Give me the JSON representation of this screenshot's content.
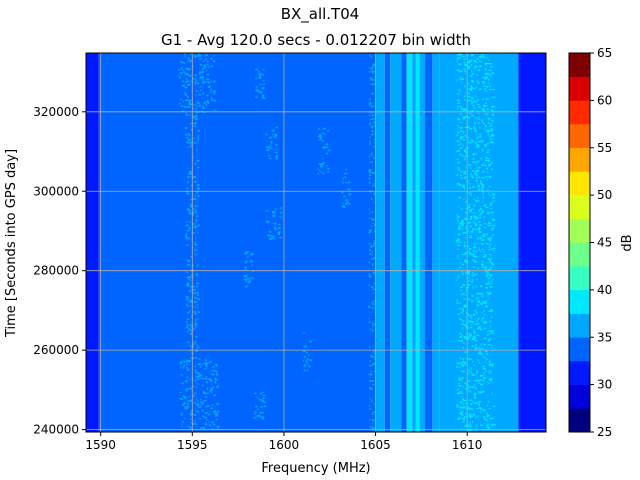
{
  "chart_data": {
    "type": "heatmap",
    "title": "BX_all.T04",
    "subtitle": "G1 - Avg 120.0 secs - 0.012207 bin width",
    "xlabel": "Frequency (MHz)",
    "ylabel": "Time [Seconds into GPS day]",
    "xlim": [
      1589.2,
      1614.3
    ],
    "ylim": [
      239400,
      334800
    ],
    "xticks": [
      1590,
      1595,
      1600,
      1605,
      1610
    ],
    "xtick_labels": [
      "1590",
      "1595",
      "1600",
      "1605",
      "1610"
    ],
    "yticks": [
      240000,
      260000,
      280000,
      300000,
      320000
    ],
    "ytick_labels": [
      "240000",
      "260000",
      "280000",
      "300000",
      "320000"
    ],
    "grid": true,
    "colorbar": {
      "label": "dB",
      "levels": [
        25,
        27.5,
        30,
        32.5,
        35,
        37.5,
        40,
        42.5,
        45,
        47.5,
        50,
        52.5,
        55,
        57.5,
        60,
        62.5,
        65
      ],
      "colors": [
        "#00007f",
        "#0000db",
        "#0019ff",
        "#0065ff",
        "#00a8ff",
        "#00e8ff",
        "#36ffc1",
        "#6cff8a",
        "#a1ff56",
        "#dbff1c",
        "#ffe600",
        "#ffa700",
        "#ff6800",
        "#ff2a00",
        "#db0000",
        "#7f0000"
      ],
      "ticks": [
        25,
        30,
        35,
        40,
        45,
        50,
        55,
        60,
        65
      ],
      "tick_labels": [
        "25",
        "30",
        "35",
        "40",
        "45",
        "50",
        "55",
        "60",
        "65"
      ]
    },
    "bands": [
      {
        "x0": 1589.2,
        "x1": 1589.9,
        "level_db": 30
      },
      {
        "x0": 1589.9,
        "x1": 1605.0,
        "level_db": 32.5
      },
      {
        "x0": 1605.0,
        "x1": 1605.5,
        "level_db": 35
      },
      {
        "x0": 1605.5,
        "x1": 1605.8,
        "level_db": 32.5
      },
      {
        "x0": 1605.8,
        "x1": 1606.4,
        "level_db": 35
      },
      {
        "x0": 1606.4,
        "x1": 1606.7,
        "level_db": 32.5
      },
      {
        "x0": 1606.7,
        "x1": 1607.0,
        "level_db": 37.5
      },
      {
        "x0": 1607.0,
        "x1": 1607.2,
        "level_db": 35
      },
      {
        "x0": 1607.2,
        "x1": 1607.4,
        "level_db": 37.5
      },
      {
        "x0": 1607.4,
        "x1": 1607.7,
        "level_db": 35
      },
      {
        "x0": 1607.7,
        "x1": 1608.1,
        "level_db": 32.5
      },
      {
        "x0": 1608.1,
        "x1": 1608.5,
        "level_db": 35
      },
      {
        "x0": 1608.5,
        "x1": 1612.8,
        "level_db": 35
      },
      {
        "x0": 1612.8,
        "x1": 1614.3,
        "level_db": 30
      }
    ],
    "speckles": [
      {
        "x0": 1594.2,
        "x1": 1596.2,
        "t0": 320000,
        "t1": 334800,
        "level_db": 35
      },
      {
        "x0": 1594.3,
        "x1": 1596.4,
        "t0": 240000,
        "t1": 258000,
        "level_db": 35
      },
      {
        "x0": 1594.6,
        "x1": 1595.3,
        "t0": 258000,
        "t1": 320000,
        "level_db": 35
      },
      {
        "x0": 1597.8,
        "x1": 1598.3,
        "t0": 276000,
        "t1": 286000,
        "level_db": 35
      },
      {
        "x0": 1598.3,
        "x1": 1598.9,
        "t0": 242000,
        "t1": 250000,
        "level_db": 35
      },
      {
        "x0": 1598.4,
        "x1": 1598.9,
        "t0": 323000,
        "t1": 332000,
        "level_db": 35
      },
      {
        "x0": 1599.0,
        "x1": 1599.6,
        "t0": 308000,
        "t1": 317000,
        "level_db": 35
      },
      {
        "x0": 1599.0,
        "x1": 1599.8,
        "t0": 288000,
        "t1": 296000,
        "level_db": 35
      },
      {
        "x0": 1601.0,
        "x1": 1601.4,
        "t0": 255000,
        "t1": 265000,
        "level_db": 35
      },
      {
        "x0": 1601.8,
        "x1": 1602.4,
        "t0": 304000,
        "t1": 316000,
        "level_db": 35
      },
      {
        "x0": 1603.1,
        "x1": 1603.6,
        "t0": 296000,
        "t1": 306000,
        "level_db": 35
      },
      {
        "x0": 1604.6,
        "x1": 1605.0,
        "t0": 240000,
        "t1": 334800,
        "level_db": 35
      },
      {
        "x0": 1609.4,
        "x1": 1611.4,
        "t0": 240000,
        "t1": 334800,
        "level_db": 37.5
      }
    ]
  }
}
